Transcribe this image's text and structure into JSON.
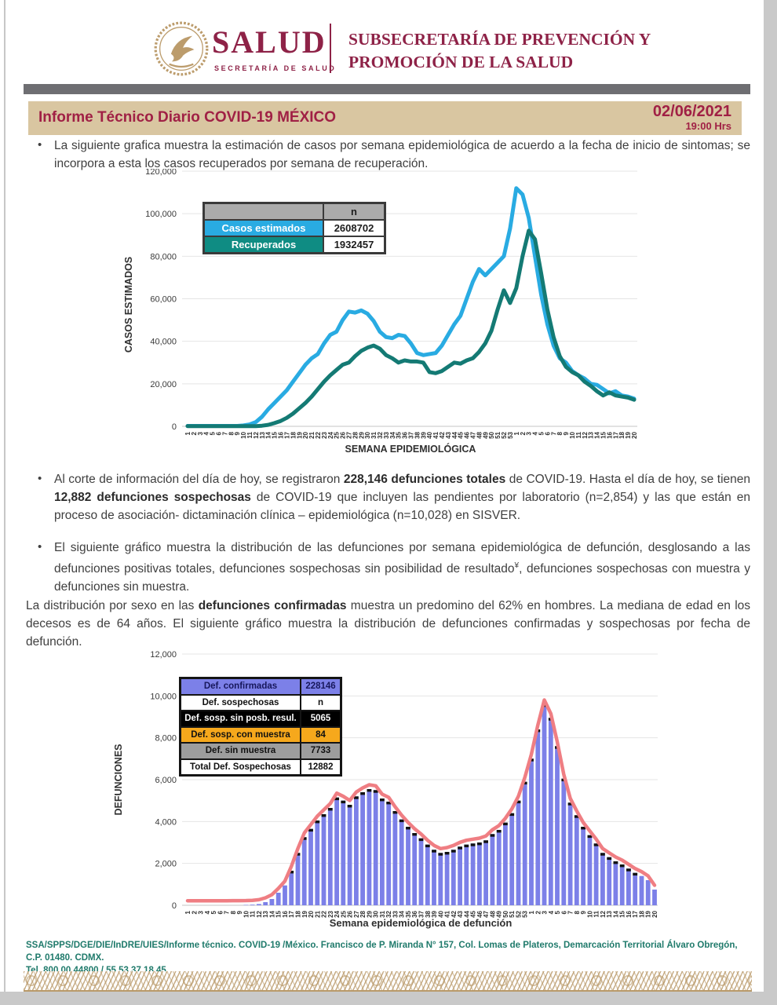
{
  "header": {
    "brand": "SALUD",
    "brand_sub": "SECRETARÍA DE SALUD",
    "division_line1": "SUBSECRETARÍA DE PREVENCIÓN Y",
    "division_line2": "PROMOCIÓN DE LA SALUD",
    "seal": "eagle-seal",
    "maroon": "#8e2247",
    "gold": "#bc9c6c"
  },
  "title_bar": {
    "title": "Informe Técnico Diario COVID-19 MÉXICO",
    "date": "02/06/2021",
    "time": "19:00 Hrs",
    "band_color": "#d9c6a1"
  },
  "paragraphs": [
    {
      "id": "p1",
      "bullet": true,
      "segments": [
        {
          "t": "La siguiente grafica muestra la estimación de casos por semana epidemiológica de acuerdo a la fecha de inicio de sintomas; se incorpora a esta los casos recuperados por semana de recuperación."
        }
      ]
    },
    {
      "id": "p2",
      "bullet": true,
      "segments": [
        {
          "t": "Al corte de información del día de hoy, se registraron "
        },
        {
          "t": "228,146 defunciones totales",
          "b": true
        },
        {
          "t": " de COVID-19. Hasta el día de hoy, se tienen "
        },
        {
          "t": "12,882 defunciones sospechosas",
          "b": true
        },
        {
          "t": " de COVID-19 que incluyen las pendientes por laboratorio (n=2,854) y las que están en proceso de asociación- dictaminación clínica – epidemiológica (n=10,028) en SISVER."
        }
      ]
    },
    {
      "id": "p3",
      "bullet": true,
      "segments": [
        {
          "t": "El siguiente gráfico muestra la distribución de las defunciones por semana epidemiológica de defunción, desglosando a las defunciones positivas totales, defunciones sospechosas sin posibilidad de resultado"
        },
        {
          "t": "¥",
          "sup": true
        },
        {
          "t": ", defunciones sospechosas con muestra y defunciones sin muestra."
        }
      ]
    },
    {
      "id": "p4",
      "bullet": false,
      "segments": [
        {
          "t": "La distribución por sexo en las "
        },
        {
          "t": "defunciones confirmadas",
          "b": true
        },
        {
          "t": " muestra un predomino del 62% en hombres. La mediana de edad en los decesos es de 64 años. El siguiente gráfico muestra la distribución de defunciones confirmadas y sospechosas por fecha de defunción."
        }
      ]
    }
  ],
  "chart1": {
    "type": "line",
    "ylabel": "CASOS ESTIMADOS",
    "xlabel": "SEMANA EPIDEMIOLÓGICA",
    "ylim": [
      0,
      120000
    ],
    "y_ticks": [
      "0",
      "20,000",
      "40,000",
      "60,000",
      "80,000",
      "100,000",
      "120,000"
    ],
    "week_labels": [
      "1",
      "2",
      "3",
      "4",
      "5",
      "6",
      "7",
      "8",
      "9",
      "10",
      "11",
      "12",
      "13",
      "14",
      "15",
      "16",
      "17",
      "18",
      "19",
      "20",
      "21",
      "22",
      "23",
      "24",
      "25",
      "26",
      "27",
      "28",
      "29",
      "30",
      "31",
      "32",
      "33",
      "34",
      "35",
      "36",
      "37",
      "38",
      "39",
      "40",
      "41",
      "42",
      "43",
      "44",
      "45",
      "46",
      "47",
      "48",
      "49",
      "50",
      "51",
      "52",
      "53",
      "1",
      "2",
      "3",
      "4",
      "5",
      "6",
      "7",
      "8",
      "9",
      "10",
      "11",
      "12",
      "13",
      "14",
      "15",
      "16",
      "17",
      "18",
      "19",
      "20"
    ],
    "legend_table": {
      "rows": [
        {
          "label": "",
          "value": "n",
          "label_bg": "#ababab",
          "label_fg": "#1c1c1c",
          "value_bg": "#ababab",
          "value_fg": "#1c1c1c"
        },
        {
          "label": "Casos estimados",
          "value": "2608702",
          "label_bg": "#29abe2",
          "label_fg": "#ffffff",
          "value_bg": "#ffffff",
          "value_fg": "#1c1c1c"
        },
        {
          "label": "Recuperados",
          "value": "1932457",
          "label_bg": "#0f8c83",
          "label_fg": "#ffffff",
          "value_bg": "#ffffff",
          "value_fg": "#1c1c1c"
        }
      ]
    },
    "series": [
      {
        "name": "Casos estimados",
        "color": "#29abe2",
        "values": [
          200,
          200,
          200,
          200,
          200,
          200,
          200,
          200,
          200,
          400,
          900,
          2000,
          4500,
          8000,
          11000,
          14000,
          17000,
          21000,
          25000,
          29000,
          32000,
          34000,
          39000,
          43000,
          44500,
          50000,
          54000,
          53500,
          54500,
          53000,
          49500,
          44500,
          42000,
          41500,
          43000,
          42500,
          39000,
          34500,
          33500,
          34000,
          34500,
          38000,
          43000,
          48000,
          52000,
          60000,
          68000,
          74000,
          71000,
          74000,
          77000,
          80000,
          93000,
          112000,
          109000,
          98000,
          80000,
          62000,
          48000,
          38000,
          32000,
          30000,
          26000,
          24000,
          22500,
          20000,
          19500,
          17500,
          15500,
          16500,
          14500,
          14000,
          13000
        ]
      },
      {
        "name": "Recuperados",
        "color": "#147a74",
        "values": [
          100,
          100,
          100,
          100,
          100,
          100,
          100,
          100,
          100,
          100,
          100,
          100,
          300,
          700,
          1500,
          2500,
          4000,
          6000,
          8500,
          11000,
          14000,
          17500,
          21000,
          24000,
          26500,
          29000,
          30000,
          33000,
          35500,
          37000,
          38000,
          36500,
          33500,
          32000,
          30000,
          31000,
          30500,
          30500,
          30000,
          25500,
          25000,
          26000,
          28000,
          30000,
          29500,
          31000,
          32000,
          35000,
          39000,
          45000,
          55000,
          64000,
          58000,
          65000,
          80000,
          92000,
          88000,
          72000,
          55000,
          42000,
          33000,
          28000,
          25500,
          24000,
          21000,
          19000,
          16500,
          14500,
          16000,
          14500,
          14000,
          13500,
          12500
        ]
      }
    ]
  },
  "chart2": {
    "type": "bar",
    "ylabel": "DEFUNCIONES",
    "xlabel": "Semana epidemiológica de defunción",
    "ylim": [
      0,
      12000
    ],
    "y_ticks": [
      "0",
      "2,000",
      "4,000",
      "6,000",
      "8,000",
      "10,000",
      "12,000"
    ],
    "week_labels": [
      "1",
      "2",
      "3",
      "4",
      "5",
      "6",
      "7",
      "8",
      "9",
      "10",
      "11",
      "12",
      "13",
      "14",
      "15",
      "16",
      "17",
      "18",
      "19",
      "20",
      "21",
      "22",
      "23",
      "24",
      "25",
      "26",
      "27",
      "28",
      "29",
      "30",
      "31",
      "32",
      "33",
      "34",
      "35",
      "36",
      "37",
      "38",
      "39",
      "40",
      "41",
      "42",
      "43",
      "44",
      "45",
      "46",
      "47",
      "48",
      "49",
      "50",
      "51",
      "52",
      "53",
      "1",
      "2",
      "3",
      "4",
      "5",
      "6",
      "7",
      "8",
      "9",
      "10",
      "11",
      "12",
      "13",
      "14",
      "15",
      "16",
      "17",
      "18",
      "19",
      "20"
    ],
    "bar_color": "#7c80e8",
    "cap_color": "#111111",
    "line_color": "#ef7e83",
    "bar_series_name": "Def. confirmadas",
    "cap_series_name": "Def. sospechosas",
    "values": [
      10,
      10,
      10,
      10,
      10,
      10,
      10,
      15,
      15,
      20,
      30,
      60,
      150,
      300,
      600,
      950,
      1650,
      2500,
      3250,
      3650,
      4050,
      4350,
      4650,
      5150,
      5000,
      4800,
      5200,
      5400,
      5550,
      5500,
      5100,
      4950,
      4500,
      4100,
      3750,
      3450,
      3200,
      2900,
      2650,
      2500,
      2550,
      2650,
      2800,
      2900,
      2950,
      3000,
      3100,
      3400,
      3600,
      3950,
      4400,
      5000,
      5900,
      7000,
      8400,
      9600,
      8950,
      7600,
      6050,
      4900,
      4300,
      3750,
      3350,
      2950,
      2500,
      2300,
      2100,
      1950,
      1750,
      1550,
      1400,
      1200,
      750
    ],
    "legend_table": {
      "rows": [
        {
          "label": "Def. confirmadas",
          "value": "228146",
          "label_bg": "#7c80e8",
          "label_fg": "#17175c",
          "value_bg": "#7c80e8",
          "value_fg": "#17175c"
        },
        {
          "label": "Def. sospechosas",
          "value": "n",
          "label_bg": "#ffffff",
          "label_fg": "#111111",
          "value_bg": "#ffffff",
          "value_fg": "#111111"
        },
        {
          "label": "Def. sosp. sin posb. resul.",
          "value": "5065",
          "label_bg": "#000000",
          "label_fg": "#ffffff",
          "value_bg": "#000000",
          "value_fg": "#ffffff"
        },
        {
          "label": "Def. sosp. con  muestra",
          "value": "84",
          "label_bg": "#f6a81c",
          "label_fg": "#111111",
          "value_bg": "#f6a81c",
          "value_fg": "#111111"
        },
        {
          "label": "Def. sin muestra",
          "value": "7733",
          "label_bg": "#9d9d9d",
          "label_fg": "#111111",
          "value_bg": "#9d9d9d",
          "value_fg": "#111111"
        },
        {
          "label": "Total Def. Sospechosas",
          "value": "12882",
          "label_bg": "#ffffff",
          "label_fg": "#111111",
          "value_bg": "#ffffff",
          "value_fg": "#111111"
        }
      ]
    }
  },
  "footer": {
    "line1": "SSA/SPPS/DGE/DIE/InDRE/UIES/Informe técnico. COVID-19 /México. Francisco de P. Miranda N° 157, Col. Lomas de Plateros, Demarcación Territorial Álvaro Obregón, C.P. 01480. CDMX.",
    "line2": "Tel. 800 00 44800 / 55 53 37 18 45.",
    "color": "#1f7a6b"
  }
}
